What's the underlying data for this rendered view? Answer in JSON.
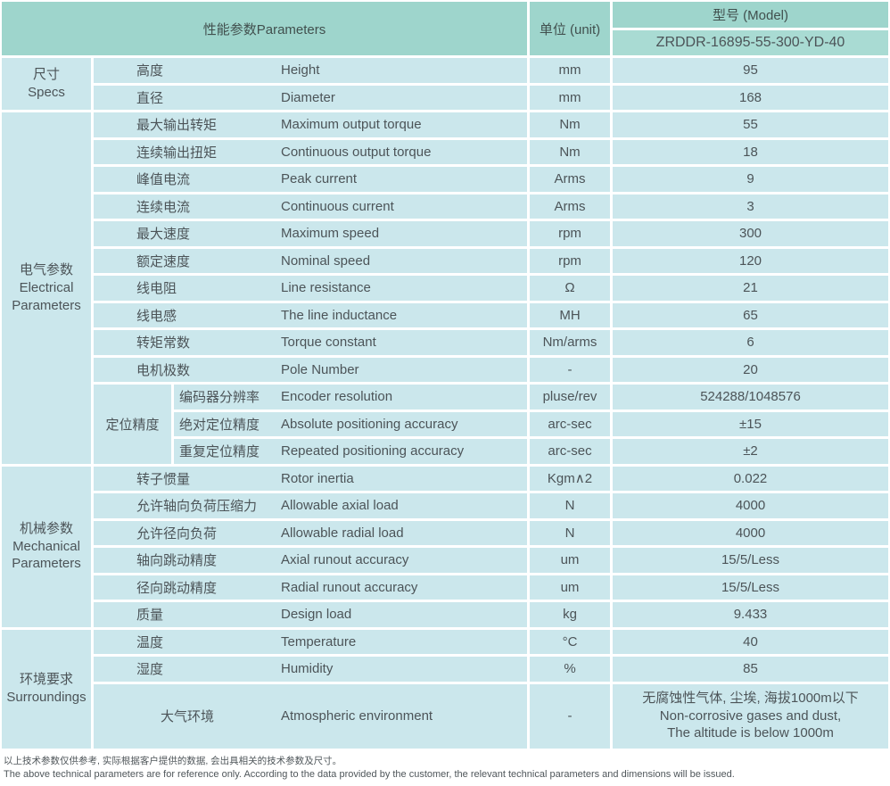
{
  "colors": {
    "header_teal": "#9ed5cc",
    "model_row_teal": "#a9dbd3",
    "row_cyan": "#cbe7ec",
    "divider_white": "#ffffff",
    "text_gray": "#4c5458"
  },
  "header": {
    "parameters": "性能参数Parameters",
    "unit": "单位 (unit)",
    "model_label": "型号 (Model)",
    "model_value": "ZRDDR-16895-55-300-YD-40"
  },
  "sections": [
    {
      "category_cn": "尺寸",
      "category_en": "Specs",
      "rows": [
        {
          "cn": "高度",
          "en": "Height",
          "unit": "mm",
          "value": "95"
        },
        {
          "cn": "直径",
          "en": "Diameter",
          "unit": "mm",
          "value": "168"
        }
      ]
    },
    {
      "category_cn": "电气参数",
      "category_en": "Electrical Parameters",
      "rows": [
        {
          "cn": "最大输出转矩",
          "en": "Maximum output torque",
          "unit": "Nm",
          "value": "55"
        },
        {
          "cn": "连续输出扭矩",
          "en": "Continuous output torque",
          "unit": "Nm",
          "value": "18"
        },
        {
          "cn": "峰值电流",
          "en": "Peak current",
          "unit": "Arms",
          "value": "9"
        },
        {
          "cn": "连续电流",
          "en": "Continuous current",
          "unit": "Arms",
          "value": "3"
        },
        {
          "cn": "最大速度",
          "en": "Maximum speed",
          "unit": "rpm",
          "value": "300"
        },
        {
          "cn": "额定速度",
          "en": "Nominal speed",
          "unit": "rpm",
          "value": "120"
        },
        {
          "cn": "线电阻",
          "en": "Line resistance",
          "unit": "Ω",
          "value": "21"
        },
        {
          "cn": "线电感",
          "en": "The line inductance",
          "unit": "MH",
          "value": "65"
        },
        {
          "cn": "转矩常数",
          "en": "Torque constant",
          "unit": "Nm/arms",
          "value": "6"
        },
        {
          "cn": "电机极数",
          "en": "Pole Number",
          "unit": "-",
          "value": "20"
        }
      ],
      "subgroup": {
        "label": "定位精度",
        "rows": [
          {
            "cn": "编码器分辨率",
            "en": "Encoder resolution",
            "unit": "pluse/rev",
            "value": "524288/1048576"
          },
          {
            "cn": "绝对定位精度",
            "en": "Absolute positioning accuracy",
            "unit": "arc-sec",
            "value": "±15"
          },
          {
            "cn": "重复定位精度",
            "en": "Repeated positioning accuracy",
            "unit": "arc-sec",
            "value": "±2"
          }
        ]
      }
    },
    {
      "category_cn": "机械参数",
      "category_en": "Mechanical Parameters",
      "rows": [
        {
          "cn": "转子惯量",
          "en": "Rotor inertia",
          "unit": "Kgm∧2",
          "value": "0.022"
        },
        {
          "cn": "允许轴向负荷压缩力",
          "en": "Allowable axial load",
          "unit": "N",
          "value": "4000"
        },
        {
          "cn": "允许径向负荷",
          "en": "Allowable radial load",
          "unit": "N",
          "value": "4000"
        },
        {
          "cn": "轴向跳动精度",
          "en": "Axial runout accuracy",
          "unit": "um",
          "value": "15/5/Less"
        },
        {
          "cn": "径向跳动精度",
          "en": "Radial runout accuracy",
          "unit": "um",
          "value": "15/5/Less"
        },
        {
          "cn": "质量",
          "en": "Design load",
          "unit": "kg",
          "value": "9.433"
        }
      ]
    },
    {
      "category_cn": "环境要求",
      "category_en": "Surroundings",
      "rows": [
        {
          "cn": "温度",
          "en": "Temperature",
          "unit": "°C",
          "value": "40"
        },
        {
          "cn": "湿度",
          "en": "Humidity",
          "unit": "%",
          "value": "85"
        },
        {
          "cn": "大气环境",
          "en": "Atmospheric environment",
          "unit": "-",
          "value_lines": [
            "无腐蚀性气体, 尘埃, 海拔1000m以下",
            "Non-corrosive gases and dust,",
            "The altitude is below 1000m"
          ]
        }
      ]
    }
  ],
  "footer": {
    "line_cn": "以上技术参数仅供参考, 实际根据客户提供的数据, 会出具相关的技术参数及尺寸。",
    "line_en": "The above technical parameters are for reference only. According to the data provided by the customer, the relevant technical parameters and dimensions will be issued."
  }
}
